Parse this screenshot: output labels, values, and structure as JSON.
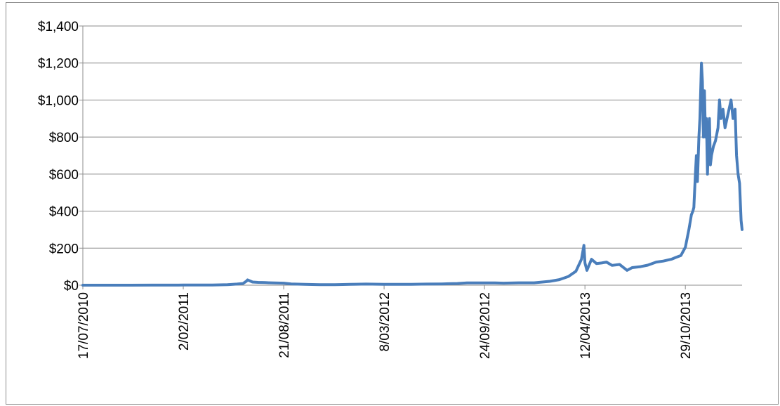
{
  "chart_data": {
    "type": "line",
    "title": "",
    "xlabel": "",
    "ylabel": "",
    "grid": true,
    "legend": "none",
    "line_color": "#4a7ebb",
    "ylim": [
      0,
      1400
    ],
    "y_ticks": [
      0,
      200,
      400,
      600,
      800,
      1000,
      1200,
      1400
    ],
    "y_tick_labels": [
      "$0",
      "$200",
      "$400",
      "$600",
      "$800",
      "$1,000",
      "$1,200",
      "$1,400"
    ],
    "x_range": [
      "17/07/2010",
      "19/02/2014"
    ],
    "x_ticks": [
      "17/07/2010",
      "2/02/2011",
      "21/08/2011",
      "8/03/2012",
      "24/09/2012",
      "12/04/2013",
      "29/10/2013"
    ],
    "x_tick_labels": [
      "17/07/2010",
      "2/02/2011",
      "21/08/2011",
      "8/03/2012",
      "24/09/2012",
      "12/04/2013",
      "29/10/2013"
    ],
    "series": [
      {
        "name": "",
        "x": [
          "17/07/2010",
          "2/09/2010",
          "20/10/2010",
          "1/12/2010",
          "2/02/2011",
          "1/03/2011",
          "1/04/2011",
          "1/05/2011",
          "20/05/2011",
          "1/06/2011",
          "8/06/2011",
          "10/06/2011",
          "20/06/2011",
          "1/07/2011",
          "15/07/2011",
          "1/08/2011",
          "21/08/2011",
          "5/09/2011",
          "1/10/2011",
          "1/11/2011",
          "1/12/2011",
          "1/01/2012",
          "1/02/2012",
          "8/03/2012",
          "1/04/2012",
          "1/05/2012",
          "1/06/2012",
          "1/07/2012",
          "1/08/2012",
          "20/08/2012",
          "24/09/2012",
          "15/10/2012",
          "1/11/2012",
          "1/12/2012",
          "1/01/2013",
          "1/02/2013",
          "20/02/2013",
          "10/03/2013",
          "25/03/2013",
          "5/04/2013",
          "10/04/2013",
          "12/04/2013",
          "16/04/2013",
          "25/04/2013",
          "5/05/2013",
          "15/05/2013",
          "25/05/2013",
          "5/06/2013",
          "20/06/2013",
          "5/07/2013",
          "15/07/2013",
          "1/08/2013",
          "15/08/2013",
          "1/09/2013",
          "15/09/2013",
          "1/10/2013",
          "10/10/2013",
          "20/10/2013",
          "29/10/2013",
          "5/11/2013",
          "10/11/2013",
          "13/11/2013",
          "15/11/2013",
          "18/11/2013",
          "20/11/2013",
          "22/11/2013",
          "25/11/2013",
          "27/11/2013",
          "29/11/2013",
          "30/11/2013",
          "2/12/2013",
          "4/12/2013",
          "6/12/2013",
          "8/12/2013",
          "10/12/2013",
          "12/12/2013",
          "14/12/2013",
          "16/12/2013",
          "18/12/2013",
          "20/12/2013",
          "24/12/2013",
          "28/12/2013",
          "2/01/2014",
          "5/01/2014",
          "8/01/2014",
          "12/01/2014",
          "16/01/2014",
          "20/01/2014",
          "24/01/2014",
          "28/01/2014",
          "1/02/2014",
          "5/02/2014",
          "8/02/2014",
          "11/02/2014",
          "14/02/2014",
          "17/02/2014",
          "19/02/2014"
        ],
        "values": [
          0.06,
          0.06,
          0.1,
          0.23,
          0.7,
          0.9,
          0.8,
          3,
          6,
          9,
          22,
          29,
          17,
          15,
          14,
          12,
          11,
          7,
          4.5,
          3,
          3,
          5,
          6,
          5,
          5,
          5,
          6,
          7,
          9,
          12,
          12,
          12,
          11,
          13,
          13,
          21,
          30,
          47,
          75,
          140,
          215,
          120,
          80,
          140,
          117,
          120,
          125,
          107,
          112,
          80,
          95,
          100,
          108,
          125,
          130,
          140,
          150,
          160,
          205,
          300,
          380,
          400,
          420,
          600,
          700,
          560,
          800,
          900,
          1100,
          1200,
          1100,
          800,
          1050,
          800,
          900,
          600,
          800,
          900,
          650,
          700,
          750,
          780,
          850,
          1000,
          900,
          950,
          850,
          900,
          950,
          1000,
          900,
          950,
          700,
          600,
          550,
          350,
          300
        ]
      }
    ]
  }
}
